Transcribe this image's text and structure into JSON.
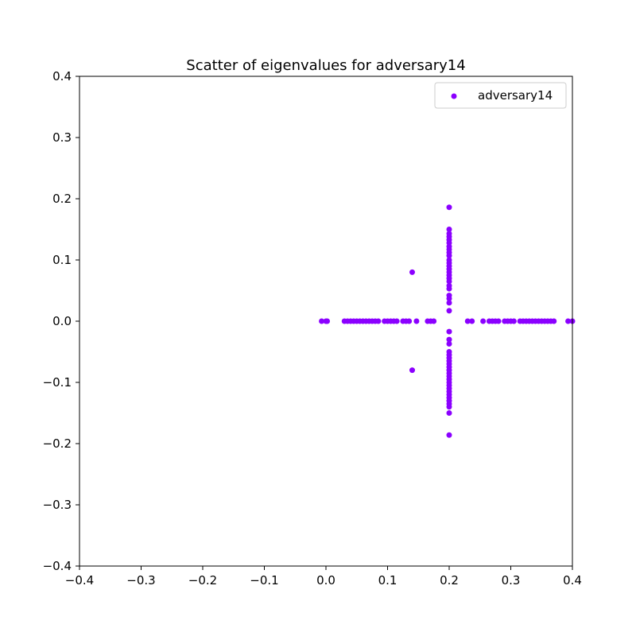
{
  "chart_data": {
    "type": "scatter",
    "title": "Scatter of eigenvalues for adversary14",
    "xlabel": "",
    "ylabel": "",
    "xlim": [
      -0.4,
      0.4
    ],
    "ylim": [
      -0.4,
      0.4
    ],
    "xticks": [
      -0.4,
      -0.3,
      -0.2,
      -0.1,
      0.0,
      0.1,
      0.2,
      0.3,
      0.4
    ],
    "yticks": [
      -0.4,
      -0.3,
      -0.2,
      -0.1,
      0.0,
      0.1,
      0.2,
      0.3,
      0.4
    ],
    "xtick_labels": [
      "−0.4",
      "−0.3",
      "−0.2",
      "−0.1",
      "0.0",
      "0.1",
      "0.2",
      "0.3",
      "0.4"
    ],
    "ytick_labels": [
      "−0.4",
      "−0.3",
      "−0.2",
      "−0.1",
      "0.0",
      "0.1",
      "0.2",
      "0.3",
      "0.4"
    ],
    "grid": false,
    "legend_position": "top-right",
    "series": [
      {
        "name": "adversary14",
        "color": "#8b00ff",
        "points": [
          [
            -0.007,
            0.0
          ],
          [
            0.0,
            0.0
          ],
          [
            0.002,
            0.0
          ],
          [
            0.03,
            0.0
          ],
          [
            0.035,
            0.0
          ],
          [
            0.04,
            0.0
          ],
          [
            0.045,
            0.0
          ],
          [
            0.05,
            0.0
          ],
          [
            0.055,
            0.0
          ],
          [
            0.06,
            0.0
          ],
          [
            0.065,
            0.0
          ],
          [
            0.07,
            0.0
          ],
          [
            0.075,
            0.0
          ],
          [
            0.08,
            0.0
          ],
          [
            0.085,
            0.0
          ],
          [
            0.095,
            0.0
          ],
          [
            0.1,
            0.0
          ],
          [
            0.105,
            0.0
          ],
          [
            0.11,
            0.0
          ],
          [
            0.115,
            0.0
          ],
          [
            0.125,
            0.0
          ],
          [
            0.13,
            0.0
          ],
          [
            0.135,
            0.0
          ],
          [
            0.147,
            0.0
          ],
          [
            0.165,
            0.0
          ],
          [
            0.17,
            0.0
          ],
          [
            0.175,
            0.0
          ],
          [
            0.23,
            0.0
          ],
          [
            0.237,
            0.0
          ],
          [
            0.255,
            0.0
          ],
          [
            0.265,
            0.0
          ],
          [
            0.27,
            0.0
          ],
          [
            0.275,
            0.0
          ],
          [
            0.28,
            0.0
          ],
          [
            0.29,
            0.0
          ],
          [
            0.295,
            0.0
          ],
          [
            0.3,
            0.0
          ],
          [
            0.305,
            0.0
          ],
          [
            0.315,
            0.0
          ],
          [
            0.32,
            0.0
          ],
          [
            0.325,
            0.0
          ],
          [
            0.33,
            0.0
          ],
          [
            0.335,
            0.0
          ],
          [
            0.34,
            0.0
          ],
          [
            0.345,
            0.0
          ],
          [
            0.35,
            0.0
          ],
          [
            0.355,
            0.0
          ],
          [
            0.36,
            0.0
          ],
          [
            0.365,
            0.0
          ],
          [
            0.37,
            0.0
          ],
          [
            0.393,
            0.0
          ],
          [
            0.4,
            0.0
          ],
          [
            0.14,
            0.08
          ],
          [
            0.14,
            -0.08
          ],
          [
            0.2,
            0.186
          ],
          [
            0.2,
            0.15
          ],
          [
            0.2,
            0.143
          ],
          [
            0.2,
            0.138
          ],
          [
            0.2,
            0.133
          ],
          [
            0.2,
            0.128
          ],
          [
            0.2,
            0.122
          ],
          [
            0.2,
            0.117
          ],
          [
            0.2,
            0.112
          ],
          [
            0.2,
            0.107
          ],
          [
            0.2,
            0.1
          ],
          [
            0.2,
            0.095
          ],
          [
            0.2,
            0.09
          ],
          [
            0.2,
            0.085
          ],
          [
            0.2,
            0.08
          ],
          [
            0.2,
            0.075
          ],
          [
            0.2,
            0.07
          ],
          [
            0.2,
            0.065
          ],
          [
            0.2,
            0.058
          ],
          [
            0.2,
            0.053
          ],
          [
            0.2,
            0.042
          ],
          [
            0.2,
            0.037
          ],
          [
            0.2,
            0.03
          ],
          [
            0.2,
            0.017
          ],
          [
            0.2,
            -0.017
          ],
          [
            0.2,
            -0.03
          ],
          [
            0.2,
            -0.037
          ],
          [
            0.2,
            -0.05
          ],
          [
            0.2,
            -0.055
          ],
          [
            0.2,
            -0.06
          ],
          [
            0.2,
            -0.065
          ],
          [
            0.2,
            -0.07
          ],
          [
            0.2,
            -0.075
          ],
          [
            0.2,
            -0.08
          ],
          [
            0.2,
            -0.085
          ],
          [
            0.2,
            -0.09
          ],
          [
            0.2,
            -0.095
          ],
          [
            0.2,
            -0.1
          ],
          [
            0.2,
            -0.105
          ],
          [
            0.2,
            -0.11
          ],
          [
            0.2,
            -0.115
          ],
          [
            0.2,
            -0.12
          ],
          [
            0.2,
            -0.125
          ],
          [
            0.2,
            -0.13
          ],
          [
            0.2,
            -0.135
          ],
          [
            0.2,
            -0.14
          ],
          [
            0.2,
            -0.15
          ],
          [
            0.2,
            -0.186
          ]
        ]
      }
    ]
  }
}
